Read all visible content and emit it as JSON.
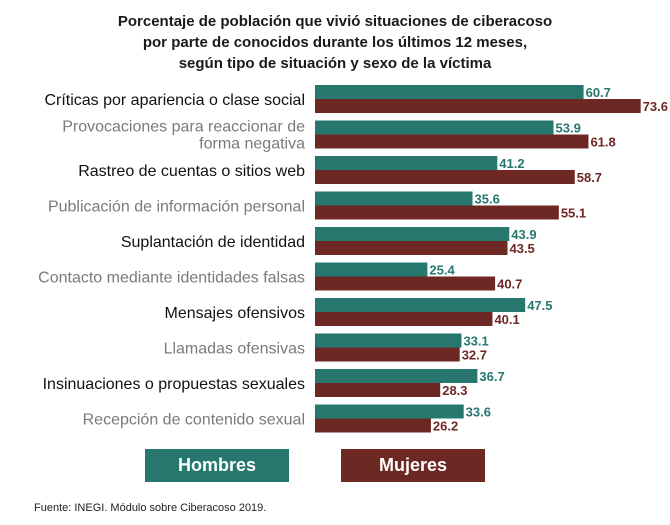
{
  "colors": {
    "hombres": "#27776f",
    "mujeres": "#6e2824"
  },
  "chart_data": {
    "type": "bar",
    "orientation": "horizontal",
    "title": [
      "Porcentaje de población que vivió situaciones de ciberacoso",
      "por parte de conocidos durante los últimos 12 meses,",
      "según tipo de situación y sexo de la víctima"
    ],
    "categories": [
      [
        "Críticas por apariencia o clase social"
      ],
      [
        "Provocaciones para reaccionar de",
        "forma negativa"
      ],
      [
        "Rastreo de cuentas o sitios web"
      ],
      [
        "Publicación de información personal"
      ],
      [
        "Suplantación de identidad"
      ],
      [
        "Contacto mediante identidades falsas"
      ],
      [
        "Mensajes ofensivos"
      ],
      [
        "Llamadas ofensivas"
      ],
      [
        "Insinuaciones o propuestas sexuales"
      ],
      [
        "Recepción de contenido sexual"
      ]
    ],
    "series": [
      {
        "name": "Hombres",
        "values": [
          60.7,
          53.9,
          41.2,
          35.6,
          43.9,
          25.4,
          47.5,
          33.1,
          36.7,
          33.6
        ]
      },
      {
        "name": "Mujeres",
        "values": [
          73.6,
          61.8,
          58.7,
          55.1,
          43.5,
          40.7,
          40.1,
          32.7,
          28.3,
          26.2
        ]
      }
    ],
    "value_format": "0.0",
    "legend_position": "bottom",
    "xlim": [
      0,
      75
    ],
    "grid": false
  },
  "legend": {
    "hombres_label": "Hombres",
    "mujeres_label": "Mujeres"
  },
  "source": "Fuente:  INEGI. Módulo sobre Ciberacoso 2019."
}
